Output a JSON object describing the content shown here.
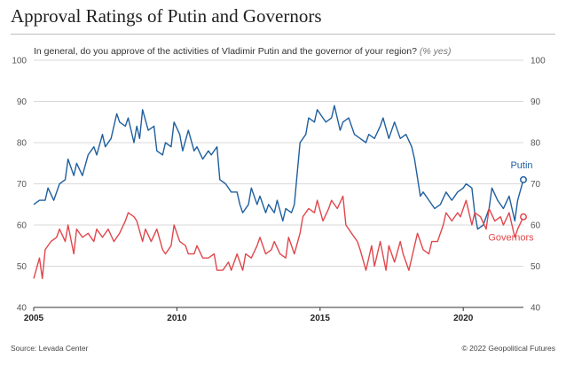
{
  "header": {
    "title": "Approval Ratings of Putin and Governors",
    "subtitle": "In general, do you approve of the activities of Vladimir Putin and the governor of your region?",
    "subtitle_note": "(% yes)"
  },
  "footer": {
    "source": "Source: Levada Center",
    "copyright": "© 2022 Geopolitical Futures"
  },
  "colors": {
    "putin": "#1f5f9e",
    "governors": "#e0474c",
    "grid": "#d9d9d9"
  },
  "chart_data": {
    "type": "line",
    "title": "Approval Ratings of Putin and Governors",
    "ylim": [
      40,
      100
    ],
    "xlim": [
      2005,
      2022.1
    ],
    "yticks": [
      40,
      50,
      60,
      70,
      80,
      90,
      100
    ],
    "xticks": [
      2005,
      2010,
      2015,
      2020
    ],
    "grid": true,
    "series": [
      {
        "name": "Putin",
        "color": "#1f5f9e",
        "end_marker": true,
        "points": [
          [
            2005.0,
            65
          ],
          [
            2005.2,
            66
          ],
          [
            2005.4,
            66
          ],
          [
            2005.5,
            69
          ],
          [
            2005.7,
            66
          ],
          [
            2005.9,
            70
          ],
          [
            2006.1,
            71
          ],
          [
            2006.2,
            76
          ],
          [
            2006.4,
            72
          ],
          [
            2006.5,
            75
          ],
          [
            2006.7,
            72
          ],
          [
            2006.9,
            77
          ],
          [
            2007.1,
            79
          ],
          [
            2007.2,
            77
          ],
          [
            2007.4,
            82
          ],
          [
            2007.5,
            79
          ],
          [
            2007.7,
            81
          ],
          [
            2007.9,
            87
          ],
          [
            2008.0,
            85
          ],
          [
            2008.2,
            84
          ],
          [
            2008.3,
            86
          ],
          [
            2008.5,
            80
          ],
          [
            2008.6,
            84
          ],
          [
            2008.7,
            81
          ],
          [
            2008.8,
            88
          ],
          [
            2009.0,
            83
          ],
          [
            2009.2,
            84
          ],
          [
            2009.3,
            78
          ],
          [
            2009.5,
            77
          ],
          [
            2009.6,
            80
          ],
          [
            2009.8,
            79
          ],
          [
            2009.9,
            85
          ],
          [
            2010.1,
            82
          ],
          [
            2010.2,
            78
          ],
          [
            2010.4,
            83
          ],
          [
            2010.6,
            78
          ],
          [
            2010.7,
            79
          ],
          [
            2010.9,
            76
          ],
          [
            2011.1,
            78
          ],
          [
            2011.2,
            77
          ],
          [
            2011.4,
            79
          ],
          [
            2011.5,
            71
          ],
          [
            2011.7,
            70
          ],
          [
            2011.9,
            68
          ],
          [
            2012.1,
            68
          ],
          [
            2012.2,
            65
          ],
          [
            2012.3,
            63
          ],
          [
            2012.5,
            65
          ],
          [
            2012.6,
            69
          ],
          [
            2012.8,
            65
          ],
          [
            2012.9,
            67
          ],
          [
            2013.1,
            63
          ],
          [
            2013.2,
            65
          ],
          [
            2013.4,
            63
          ],
          [
            2013.5,
            66
          ],
          [
            2013.7,
            61
          ],
          [
            2013.8,
            64
          ],
          [
            2014.0,
            63
          ],
          [
            2014.1,
            65
          ],
          [
            2014.3,
            80
          ],
          [
            2014.5,
            82
          ],
          [
            2014.6,
            86
          ],
          [
            2014.8,
            85
          ],
          [
            2014.9,
            88
          ],
          [
            2015.1,
            86
          ],
          [
            2015.2,
            85
          ],
          [
            2015.4,
            86
          ],
          [
            2015.5,
            89
          ],
          [
            2015.7,
            83
          ],
          [
            2015.8,
            85
          ],
          [
            2016.0,
            86
          ],
          [
            2016.2,
            82
          ],
          [
            2016.4,
            81
          ],
          [
            2016.6,
            80
          ],
          [
            2016.7,
            82
          ],
          [
            2016.9,
            81
          ],
          [
            2017.1,
            84
          ],
          [
            2017.2,
            86
          ],
          [
            2017.4,
            81
          ],
          [
            2017.6,
            85
          ],
          [
            2017.8,
            81
          ],
          [
            2018.0,
            82
          ],
          [
            2018.2,
            79
          ],
          [
            2018.3,
            76
          ],
          [
            2018.5,
            67
          ],
          [
            2018.6,
            68
          ],
          [
            2018.8,
            66
          ],
          [
            2019.0,
            64
          ],
          [
            2019.2,
            65
          ],
          [
            2019.4,
            68
          ],
          [
            2019.6,
            66
          ],
          [
            2019.8,
            68
          ],
          [
            2020.0,
            69
          ],
          [
            2020.1,
            70
          ],
          [
            2020.3,
            69
          ],
          [
            2020.4,
            63
          ],
          [
            2020.5,
            59
          ],
          [
            2020.7,
            60
          ],
          [
            2020.9,
            64
          ],
          [
            2021.0,
            69
          ],
          [
            2021.2,
            66
          ],
          [
            2021.4,
            64
          ],
          [
            2021.6,
            67
          ],
          [
            2021.8,
            61
          ],
          [
            2021.9,
            66
          ],
          [
            2022.1,
            71
          ]
        ]
      },
      {
        "name": "Governors",
        "color": "#e0474c",
        "end_marker": true,
        "points": [
          [
            2005.0,
            47
          ],
          [
            2005.2,
            52
          ],
          [
            2005.3,
            47
          ],
          [
            2005.4,
            54
          ],
          [
            2005.6,
            56
          ],
          [
            2005.8,
            57
          ],
          [
            2005.9,
            59
          ],
          [
            2006.1,
            56
          ],
          [
            2006.2,
            60
          ],
          [
            2006.4,
            53
          ],
          [
            2006.5,
            59
          ],
          [
            2006.7,
            57
          ],
          [
            2006.9,
            58
          ],
          [
            2007.1,
            56
          ],
          [
            2007.2,
            59
          ],
          [
            2007.4,
            57
          ],
          [
            2007.6,
            59
          ],
          [
            2007.8,
            56
          ],
          [
            2008.0,
            58
          ],
          [
            2008.2,
            61
          ],
          [
            2008.3,
            63
          ],
          [
            2008.5,
            62
          ],
          [
            2008.6,
            61
          ],
          [
            2008.8,
            56
          ],
          [
            2008.9,
            59
          ],
          [
            2009.1,
            56
          ],
          [
            2009.3,
            59
          ],
          [
            2009.5,
            54
          ],
          [
            2009.6,
            53
          ],
          [
            2009.8,
            55
          ],
          [
            2009.9,
            60
          ],
          [
            2010.1,
            56
          ],
          [
            2010.3,
            55
          ],
          [
            2010.4,
            53
          ],
          [
            2010.6,
            53
          ],
          [
            2010.7,
            55
          ],
          [
            2010.9,
            52
          ],
          [
            2011.1,
            52
          ],
          [
            2011.3,
            53
          ],
          [
            2011.4,
            49
          ],
          [
            2011.6,
            49
          ],
          [
            2011.8,
            51
          ],
          [
            2011.9,
            49
          ],
          [
            2012.1,
            53
          ],
          [
            2012.3,
            49
          ],
          [
            2012.4,
            53
          ],
          [
            2012.6,
            52
          ],
          [
            2012.8,
            55
          ],
          [
            2012.9,
            57
          ],
          [
            2013.1,
            53
          ],
          [
            2013.3,
            54
          ],
          [
            2013.4,
            56
          ],
          [
            2013.6,
            53
          ],
          [
            2013.8,
            52
          ],
          [
            2013.9,
            57
          ],
          [
            2014.1,
            53
          ],
          [
            2014.3,
            58
          ],
          [
            2014.4,
            62
          ],
          [
            2014.6,
            64
          ],
          [
            2014.8,
            63
          ],
          [
            2014.9,
            66
          ],
          [
            2015.1,
            61
          ],
          [
            2015.3,
            64
          ],
          [
            2015.4,
            66
          ],
          [
            2015.6,
            64
          ],
          [
            2015.8,
            67
          ],
          [
            2015.9,
            60
          ],
          [
            2016.1,
            58
          ],
          [
            2016.3,
            56
          ],
          [
            2016.4,
            54
          ],
          [
            2016.6,
            49
          ],
          [
            2016.8,
            55
          ],
          [
            2016.9,
            50
          ],
          [
            2017.1,
            56
          ],
          [
            2017.3,
            49
          ],
          [
            2017.4,
            55
          ],
          [
            2017.6,
            51
          ],
          [
            2017.8,
            56
          ],
          [
            2017.9,
            53
          ],
          [
            2018.1,
            49
          ],
          [
            2018.3,
            55
          ],
          [
            2018.4,
            58
          ],
          [
            2018.6,
            54
          ],
          [
            2018.8,
            53
          ],
          [
            2018.9,
            56
          ],
          [
            2019.1,
            56
          ],
          [
            2019.3,
            60
          ],
          [
            2019.4,
            63
          ],
          [
            2019.6,
            61
          ],
          [
            2019.8,
            63
          ],
          [
            2019.9,
            62
          ],
          [
            2020.1,
            66
          ],
          [
            2020.3,
            60
          ],
          [
            2020.4,
            63
          ],
          [
            2020.6,
            62
          ],
          [
            2020.8,
            59
          ],
          [
            2020.9,
            64
          ],
          [
            2021.1,
            61
          ],
          [
            2021.3,
            62
          ],
          [
            2021.4,
            60
          ],
          [
            2021.6,
            63
          ],
          [
            2021.8,
            57
          ],
          [
            2021.9,
            59
          ],
          [
            2022.1,
            62
          ]
        ]
      }
    ]
  }
}
